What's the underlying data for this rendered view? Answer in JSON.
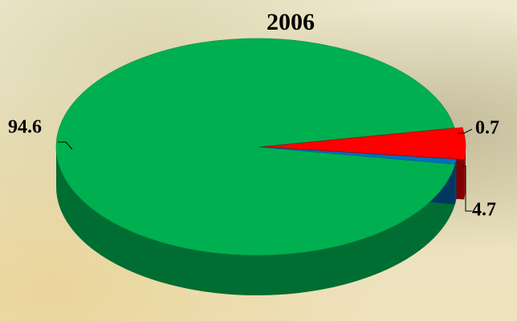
{
  "chart_data": {
    "type": "pie",
    "title": "2006",
    "values": [
      94.6,
      4.7,
      0.7
    ],
    "colors": [
      "#00b050",
      "#ff0000",
      "#0070c0"
    ]
  }
}
